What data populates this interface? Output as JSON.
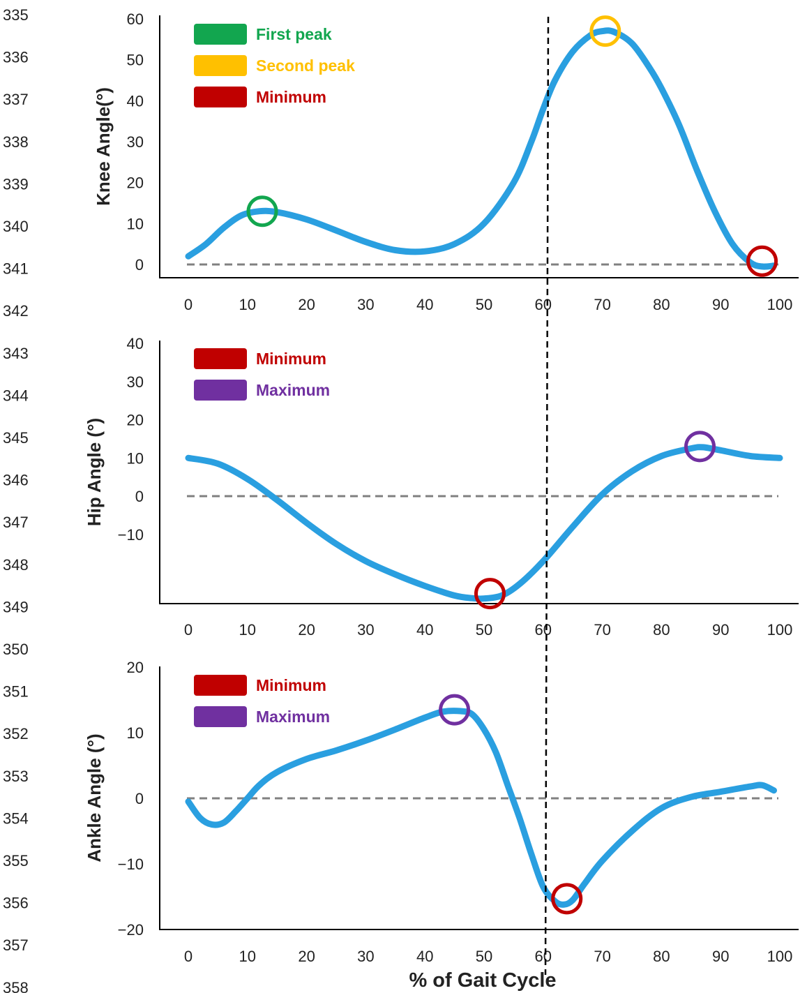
{
  "line_numbers": [
    "335",
    "336",
    "337",
    "338",
    "339",
    "340",
    "341",
    "342",
    "343",
    "344",
    "345",
    "346",
    "347",
    "348",
    "349",
    "350",
    "351",
    "352",
    "353",
    "354",
    "355",
    "356",
    "357",
    "358"
  ],
  "colors": {
    "curve": "#2a9fe0",
    "zero_line": "#808080",
    "vline": "#000000",
    "axis": "#000000",
    "green": "#12a64f",
    "yellow": "#ffc000",
    "red": "#c00000",
    "purple": "#7030a0"
  },
  "vertical_marker_x": 60,
  "chart_data": [
    {
      "type": "line",
      "title": "",
      "xlabel": "",
      "ylabel": "Knee Angle(°)",
      "xlim": [
        0,
        100
      ],
      "ylim": [
        -3,
        60
      ],
      "x_ticks": [
        "0",
        "10",
        "20",
        "30",
        "40",
        "50",
        "60",
        "70",
        "80",
        "90",
        "100"
      ],
      "y_ticks": [
        {
          "value": 0,
          "label": "0"
        },
        {
          "value": 10,
          "label": "10"
        },
        {
          "value": 20,
          "label": "20"
        },
        {
          "value": 30,
          "label": "30"
        },
        {
          "value": 40,
          "label": "40"
        },
        {
          "value": 50,
          "label": "50"
        },
        {
          "value": 60,
          "label": "60"
        }
      ],
      "reference_line_y": 0,
      "series": [
        {
          "x": [
            0,
            3,
            6,
            9,
            12,
            15,
            20,
            25,
            30,
            35,
            40,
            45,
            50,
            55,
            58,
            60,
            62,
            65,
            68,
            70,
            72,
            75,
            78,
            80,
            83,
            86,
            89,
            92,
            95,
            97,
            99
          ],
          "y": [
            2,
            5,
            9,
            12,
            13,
            12.8,
            11,
            8.3,
            5.5,
            3.5,
            3.2,
            5,
            10,
            20,
            30,
            38,
            45,
            52,
            56,
            57,
            56.8,
            54,
            48,
            43,
            34,
            23,
            13,
            5,
            0.5,
            -0.5,
            -0.3
          ]
        }
      ],
      "markers": [
        {
          "x": 12.5,
          "y": 13,
          "color": "green"
        },
        {
          "x": 70.5,
          "y": 57,
          "color": "yellow"
        },
        {
          "x": 97,
          "y": 0.8,
          "color": "red"
        }
      ],
      "legend": {
        "placement": "top-left",
        "items": [
          {
            "label": "First peak",
            "color": "green"
          },
          {
            "label": "Second peak",
            "color": "yellow"
          },
          {
            "label": "Minimum",
            "color": "red"
          }
        ]
      }
    },
    {
      "type": "line",
      "title": "",
      "xlabel": "",
      "ylabel": "Hip Angle (°)",
      "xlim": [
        0,
        100
      ],
      "ylim": [
        -28,
        40
      ],
      "x_ticks": [
        "0",
        "10",
        "20",
        "30",
        "40",
        "50",
        "60",
        "70",
        "80",
        "90",
        "100"
      ],
      "y_ticks": [
        {
          "value": -10,
          "label": "−10"
        },
        {
          "value": 0,
          "label": "0"
        },
        {
          "value": 10,
          "label": "10"
        },
        {
          "value": 20,
          "label": "20"
        },
        {
          "value": 30,
          "label": "30"
        },
        {
          "value": 40,
          "label": "40"
        }
      ],
      "reference_line_y": 0,
      "series": [
        {
          "x": [
            0,
            5,
            10,
            15,
            20,
            25,
            30,
            35,
            40,
            45,
            48,
            50,
            53,
            56,
            60,
            65,
            70,
            75,
            80,
            85,
            87,
            90,
            95,
            100
          ],
          "y": [
            10,
            8.5,
            4.5,
            -1,
            -7,
            -12.5,
            -17,
            -20.5,
            -23.5,
            -26,
            -26.7,
            -26.8,
            -26,
            -23,
            -17,
            -8,
            0.5,
            6.5,
            10.5,
            12.5,
            12.8,
            12,
            10.5,
            10
          ]
        }
      ],
      "markers": [
        {
          "x": 51,
          "y": -25.5,
          "color": "red"
        },
        {
          "x": 86.5,
          "y": 13,
          "color": "purple"
        }
      ],
      "legend": {
        "placement": "top-left",
        "items": [
          {
            "label": "Minimum",
            "color": "red"
          },
          {
            "label": "Maximum",
            "color": "purple"
          }
        ]
      }
    },
    {
      "type": "line",
      "title": "",
      "xlabel": "% of Gait Cycle",
      "ylabel": "Ankle Angle (°)",
      "xlim": [
        0,
        100
      ],
      "ylim": [
        -20,
        20
      ],
      "x_ticks": [
        "0",
        "10",
        "20",
        "30",
        "40",
        "50",
        "60",
        "70",
        "80",
        "90",
        "100"
      ],
      "y_ticks": [
        {
          "value": -20,
          "label": "−20"
        },
        {
          "value": -10,
          "label": "−10"
        },
        {
          "value": 0,
          "label": "0"
        },
        {
          "value": 10,
          "label": "10"
        },
        {
          "value": 20,
          "label": "20"
        }
      ],
      "reference_line_y": 0,
      "series": [
        {
          "x": [
            0,
            2,
            4,
            6,
            8,
            10,
            12,
            15,
            20,
            25,
            30,
            35,
            40,
            43,
            46,
            48,
            50,
            52,
            54,
            56,
            58,
            60,
            62,
            63.5,
            65,
            67,
            70,
            75,
            80,
            85,
            90,
            95,
            97,
            99
          ],
          "y": [
            -0.5,
            -3,
            -4,
            -3.7,
            -2,
            0,
            2,
            4,
            6,
            7.3,
            8.8,
            10.5,
            12.3,
            13.2,
            13.3,
            12.8,
            10.5,
            7,
            2,
            -3,
            -8.5,
            -13.5,
            -15.7,
            -16.2,
            -15.5,
            -13,
            -9.5,
            -5,
            -1.5,
            0.2,
            1,
            1.8,
            2,
            1.2
          ]
        }
      ],
      "markers": [
        {
          "x": 45,
          "y": 13.5,
          "color": "purple"
        },
        {
          "x": 64,
          "y": -15.3,
          "color": "red"
        }
      ],
      "legend": {
        "placement": "top-left",
        "items": [
          {
            "label": "Minimum",
            "color": "red"
          },
          {
            "label": "Maximum",
            "color": "purple"
          }
        ]
      }
    }
  ]
}
